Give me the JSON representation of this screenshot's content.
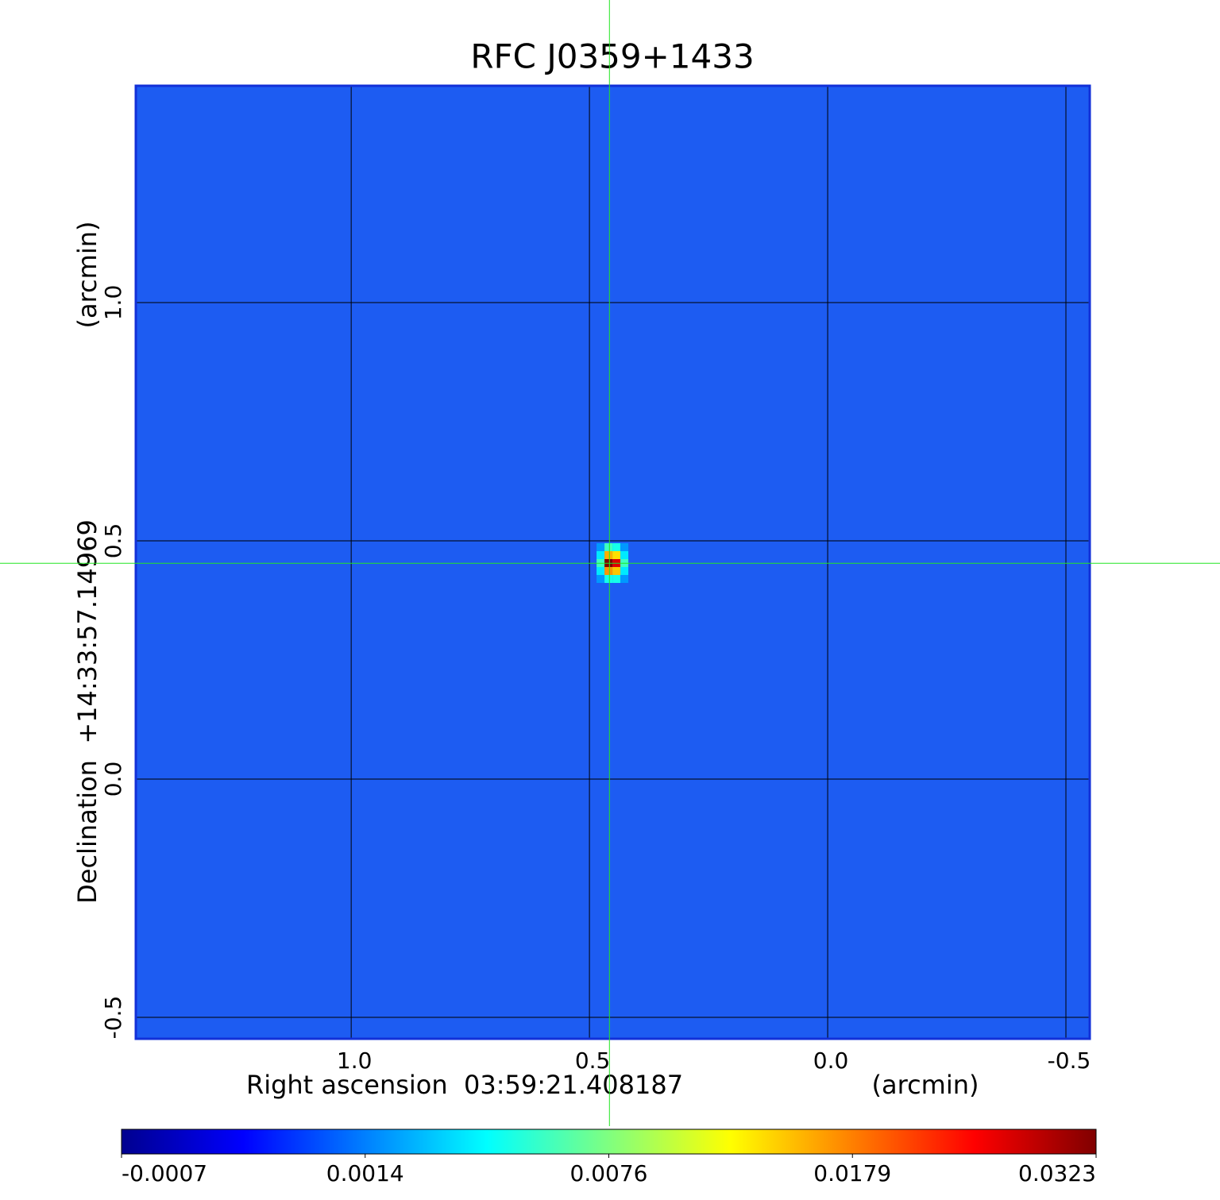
{
  "chart_data": {
    "type": "heatmap",
    "title": "RFC J0359+1433",
    "title_color": "#0a14d6",
    "xlabel": "Right ascension  03:59:21.408187",
    "xunit": "(arcmin)",
    "ylabel": "Declination  +14:33:57.14969",
    "yunit": "(arcmin)",
    "xlim": [
      1.452,
      -0.55
    ],
    "ylim": [
      -0.545,
      1.455
    ],
    "xticks": [
      {
        "value": 1,
        "label": "1.0"
      },
      0.5,
      {
        "value": 0,
        "label": "0.0"
      },
      -0.5
    ],
    "yticks": [
      -0.5,
      {
        "value": 0,
        "label": "0.0"
      },
      0.5,
      {
        "value": 1,
        "label": "1.0"
      }
    ],
    "grid": true,
    "background_color": "#1d5cf2",
    "border_color": "#1230d8",
    "colormap": "jet",
    "cells": {
      "x": [
        0.4767,
        0.46,
        0.4433,
        0.4267
      ],
      "y": [
        0.4867,
        0.47,
        0.4533,
        0.4367,
        0.42
      ],
      "values": [
        [
          0.002,
          0.006,
          0.005,
          0.002
        ],
        [
          0.004,
          0.016,
          0.014,
          0.004
        ],
        [
          0.006,
          0.0323,
          0.027,
          0.006
        ],
        [
          0.004,
          0.017,
          0.015,
          0.004
        ],
        [
          0.002,
          0.005,
          0.005,
          0.002
        ]
      ]
    },
    "crosshair": {
      "x": 0.458,
      "y": 0.453,
      "color": "#22e622"
    },
    "colorbar": {
      "lim": [
        -0.0007,
        0.0323
      ],
      "ticks": [
        -0.0007,
        0.0014,
        0.0076,
        0.0179,
        0.0323
      ]
    }
  }
}
